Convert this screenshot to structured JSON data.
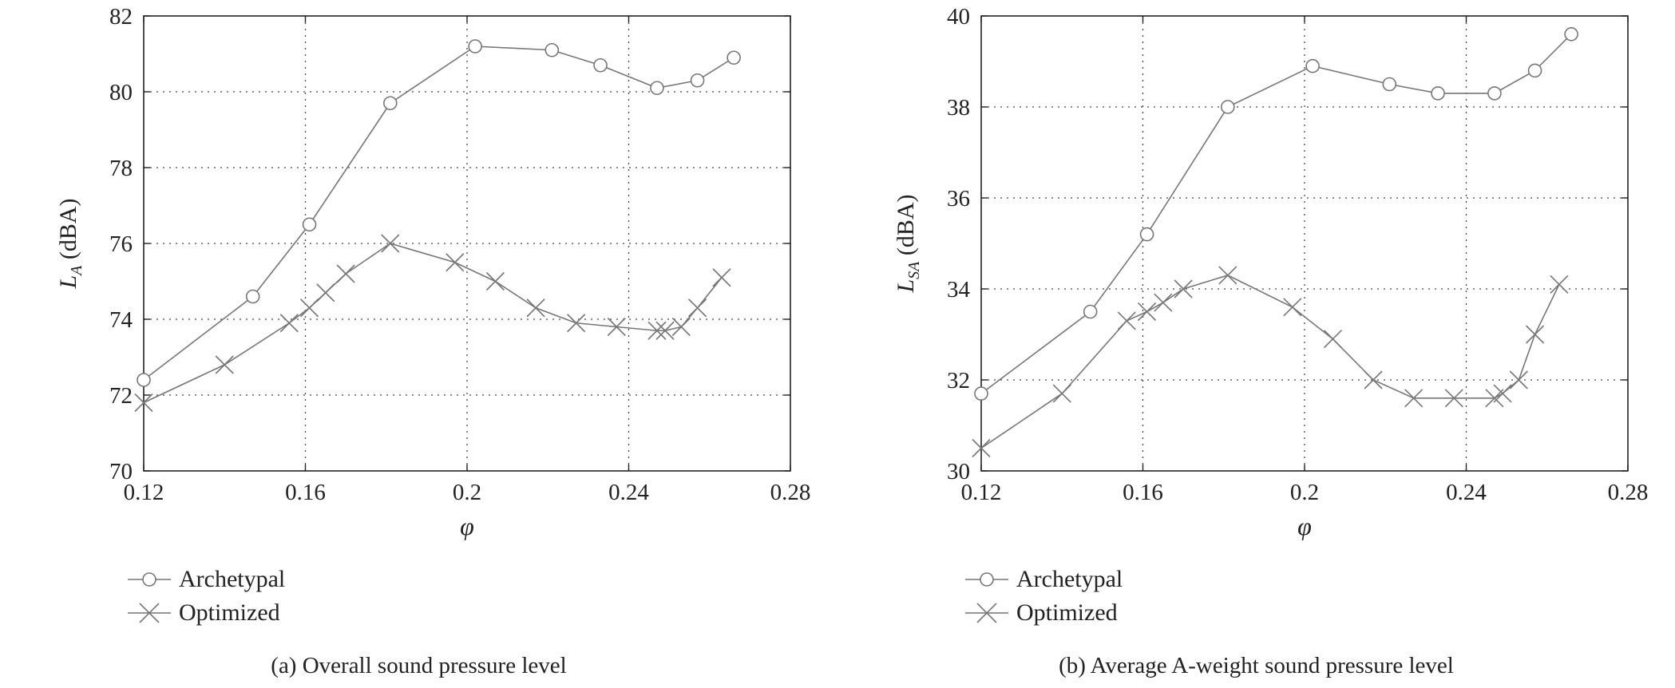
{
  "chart_data": [
    {
      "type": "line",
      "caption": "(a) Overall sound pressure level",
      "xlabel": "φ",
      "ylabel_main": "L",
      "ylabel_sub": "A",
      "ylabel_unit": "(dBA)",
      "xlim": [
        0.12,
        0.28
      ],
      "ylim": [
        70,
        82
      ],
      "xticks": [
        0.12,
        0.16,
        0.2,
        0.24,
        0.28
      ],
      "xtick_labels": [
        "0.12",
        "0.16",
        "0.2",
        "0.24",
        "0.28"
      ],
      "yticks": [
        70,
        72,
        74,
        76,
        78,
        80,
        82
      ],
      "ytick_labels": [
        "70",
        "72",
        "74",
        "76",
        "78",
        "80",
        "82"
      ],
      "grid": true,
      "legend_position": "below",
      "series": [
        {
          "name": "Archetypal",
          "marker": "circle",
          "x": [
            0.12,
            0.147,
            0.161,
            0.181,
            0.202,
            0.221,
            0.233,
            0.247,
            0.257,
            0.266
          ],
          "y": [
            72.4,
            74.6,
            76.5,
            79.7,
            81.2,
            81.1,
            80.7,
            80.1,
            80.3,
            80.9
          ]
        },
        {
          "name": "Optimized",
          "marker": "x",
          "x": [
            0.12,
            0.14,
            0.156,
            0.161,
            0.165,
            0.17,
            0.181,
            0.197,
            0.207,
            0.217,
            0.227,
            0.237,
            0.247,
            0.249,
            0.253,
            0.257,
            0.263
          ],
          "y": [
            71.8,
            72.8,
            73.9,
            74.3,
            74.7,
            75.2,
            76.0,
            75.5,
            75.0,
            74.3,
            73.9,
            73.8,
            73.7,
            73.7,
            73.8,
            74.3,
            75.1
          ]
        }
      ]
    },
    {
      "type": "line",
      "caption": "(b) Average A-weight sound pressure level",
      "xlabel": "φ",
      "ylabel_main": "L",
      "ylabel_sub": "SA",
      "ylabel_unit": "(dBA)",
      "xlim": [
        0.12,
        0.28
      ],
      "ylim": [
        30,
        40
      ],
      "xticks": [
        0.12,
        0.16,
        0.2,
        0.24,
        0.28
      ],
      "xtick_labels": [
        "0.12",
        "0.16",
        "0.2",
        "0.24",
        "0.28"
      ],
      "yticks": [
        30,
        32,
        34,
        36,
        38,
        40
      ],
      "ytick_labels": [
        "30",
        "32",
        "34",
        "36",
        "38",
        "40"
      ],
      "grid": true,
      "legend_position": "below",
      "series": [
        {
          "name": "Archetypal",
          "marker": "circle",
          "x": [
            0.12,
            0.147,
            0.161,
            0.181,
            0.202,
            0.221,
            0.233,
            0.247,
            0.257,
            0.266
          ],
          "y": [
            31.7,
            33.5,
            35.2,
            38.0,
            38.9,
            38.5,
            38.3,
            38.3,
            38.8,
            39.6
          ]
        },
        {
          "name": "Optimized",
          "marker": "x",
          "x": [
            0.12,
            0.14,
            0.156,
            0.161,
            0.165,
            0.17,
            0.181,
            0.197,
            0.207,
            0.217,
            0.227,
            0.237,
            0.247,
            0.249,
            0.253,
            0.257,
            0.263
          ],
          "y": [
            30.5,
            31.7,
            33.3,
            33.5,
            33.7,
            34.0,
            34.3,
            33.6,
            32.9,
            32.0,
            31.6,
            31.6,
            31.6,
            31.7,
            32.0,
            33.0,
            34.1
          ]
        }
      ]
    }
  ]
}
